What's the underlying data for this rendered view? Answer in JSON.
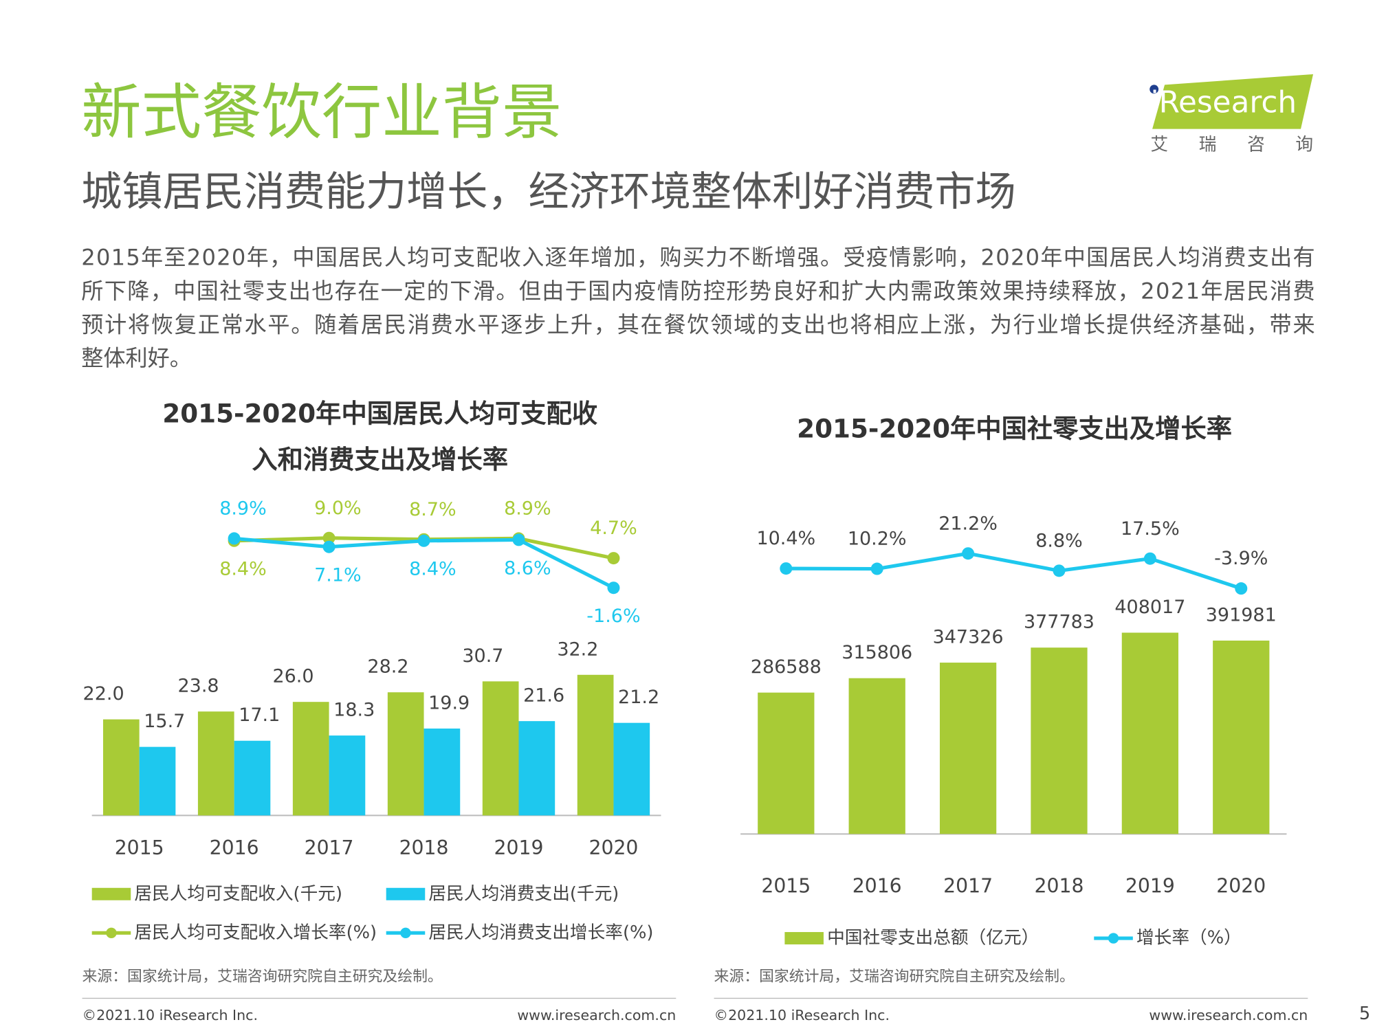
{
  "title": "新式餐饮行业背景",
  "subtitle": "城镇居民消费能力增长，经济环境整体利好消费市场",
  "body": [
    "2015年至2020年，中国居民人均可支配收入逐年增加，购买力不断增强。受疫情影响，2020年中国居民人均消费支出有",
    "所下降，中国社零支出也存在一定的下滑。但由于国内疫情防控形势良好和扩大内需政策效果持续释放，2021年居民消费",
    "预计将恢复正常水平。随着居民消费水平逐步上升，其在餐饮领域的支出也将相应上涨，为行业增长提供经济基础，带来",
    "整体利好。"
  ],
  "logo": {
    "brand": "iResearch",
    "tagline": "艾 瑞 咨 询"
  },
  "chart_data": [
    {
      "type": "bar",
      "title": [
        "2015-2020年中国居民人均可支配收",
        "入和消费支出及增长率"
      ],
      "categories": [
        "2015",
        "2016",
        "2017",
        "2018",
        "2019",
        "2020"
      ],
      "ylim": [
        0,
        70
      ],
      "y2lim": [
        -50,
        15
      ],
      "series": [
        {
          "name": "居民人均可支配收入(千元)",
          "color": "#a8cb36",
          "values": [
            22.0,
            23.8,
            26.0,
            28.2,
            30.7,
            32.2
          ],
          "value_labels": [
            "22.0",
            "23.8",
            "26.0",
            "28.2",
            "30.7",
            "32.2"
          ]
        },
        {
          "name": "居民人均消费支出(千元)",
          "color": "#1ec8ee",
          "values": [
            15.7,
            17.1,
            18.3,
            19.9,
            21.6,
            21.2
          ],
          "value_labels": [
            "15.7",
            "17.1",
            "18.3",
            "19.9",
            "21.6",
            "21.2"
          ]
        },
        {
          "name": "居民人均可支配收入增长率(%)",
          "color": "#a8cb36",
          "axis": "y2",
          "values": [
            null,
            8.4,
            9.0,
            8.7,
            8.9,
            4.7
          ],
          "value_labels": [
            null,
            "8.4%",
            "9.0%",
            "8.7%",
            "8.9%",
            "4.7%"
          ]
        },
        {
          "name": "居民人均消费支出增长率(%)",
          "color": "#1ec8ee",
          "axis": "y2",
          "values": [
            null,
            8.9,
            7.1,
            8.4,
            8.6,
            -1.6
          ],
          "value_labels": [
            null,
            "8.9%",
            "7.1%",
            "8.4%",
            "8.6%",
            "-1.6%"
          ]
        }
      ],
      "source": "来源：国家统计局，艾瑞咨询研究院自主研究及绘制。"
    },
    {
      "type": "bar",
      "title": [
        "2015-2020年中国社零支出及增长率"
      ],
      "categories": [
        "2015",
        "2016",
        "2017",
        "2018",
        "2019",
        "2020"
      ],
      "ylim": [
        0,
        650000
      ],
      "y2lim": [
        -180,
        50
      ],
      "series": [
        {
          "name": "中国社零支出总额（亿元）",
          "color": "#a8cb36",
          "values": [
            286588,
            315806,
            347326,
            377783,
            408017,
            391981
          ]
        },
        {
          "name": "增长率（%）",
          "color": "#1ec8ee",
          "axis": "y2",
          "values": [
            10.4,
            10.2,
            21.2,
            8.8,
            17.5,
            -3.9
          ],
          "value_labels": [
            "10.4%",
            "10.2%",
            "21.2%",
            "8.8%",
            "17.5%",
            "-3.9%"
          ]
        }
      ],
      "source": "来源：国家统计局，艾瑞咨询研究院自主研究及绘制。"
    }
  ],
  "footer": {
    "copyright": "©2021.10 iResearch Inc.",
    "url": "www.iresearch.com.cn",
    "page": "5"
  }
}
